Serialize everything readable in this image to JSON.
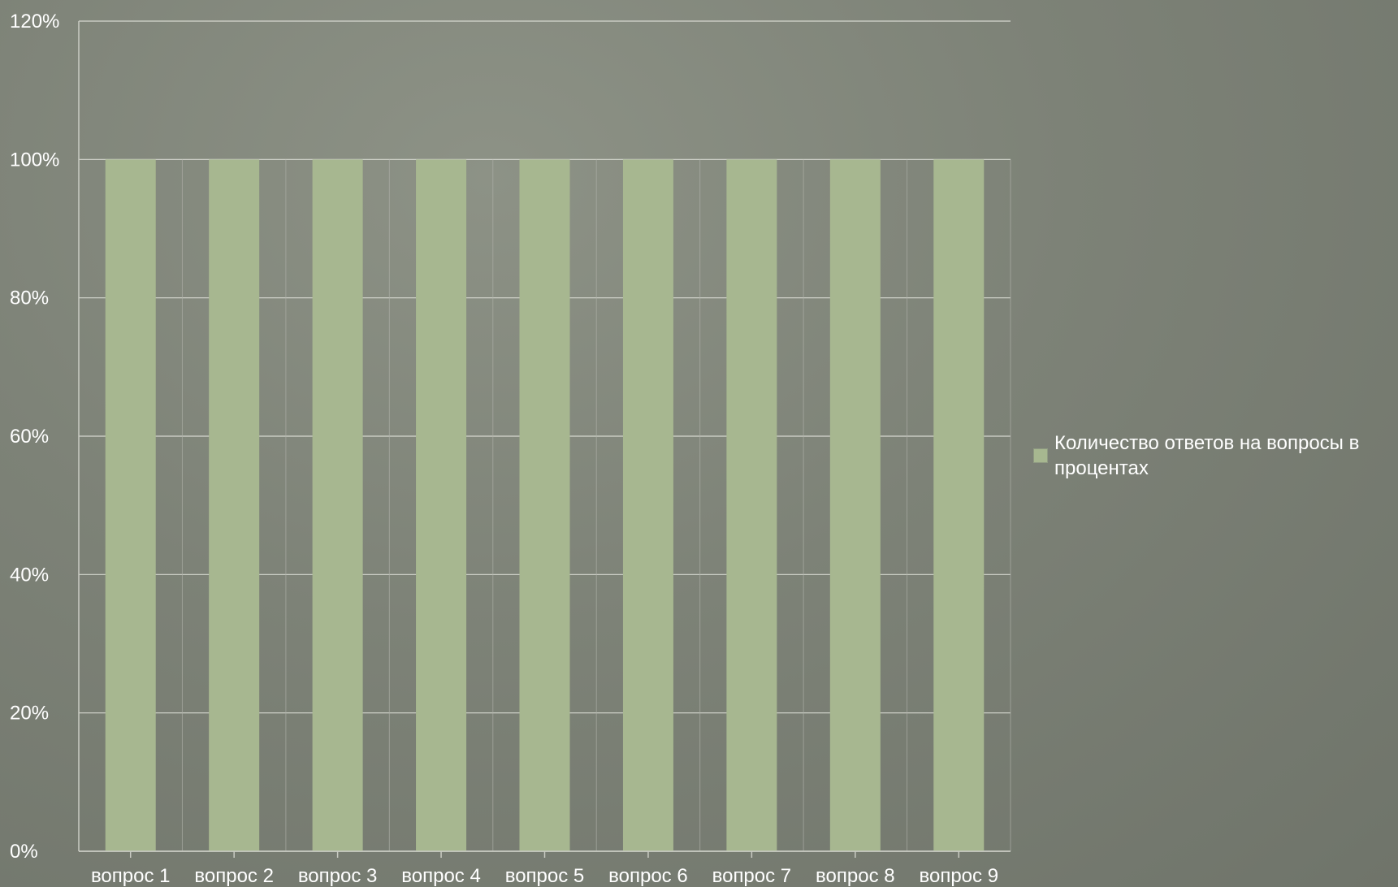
{
  "chart_data": {
    "type": "bar",
    "categories": [
      "вопрос 1",
      "вопрос 2",
      "вопрос 3",
      "вопрос 4",
      "вопрос 5",
      "вопрос 6",
      "вопрос 7",
      "вопрос 8",
      "вопрос 9"
    ],
    "series": [
      {
        "name": "Количество ответов на вопросы в процентах",
        "values": [
          100,
          100,
          100,
          100,
          100,
          100,
          100,
          100,
          100
        ]
      }
    ],
    "yticks": [
      "0%",
      "20%",
      "40%",
      "60%",
      "80%",
      "100%",
      "120%"
    ],
    "ylim": [
      0,
      120
    ],
    "grid": true,
    "legend_position": "right",
    "colors": {
      "bar": "#a7b790",
      "grid": "#d6d8d0",
      "axis": "#c9cbc3",
      "text": "#ffffff"
    }
  }
}
